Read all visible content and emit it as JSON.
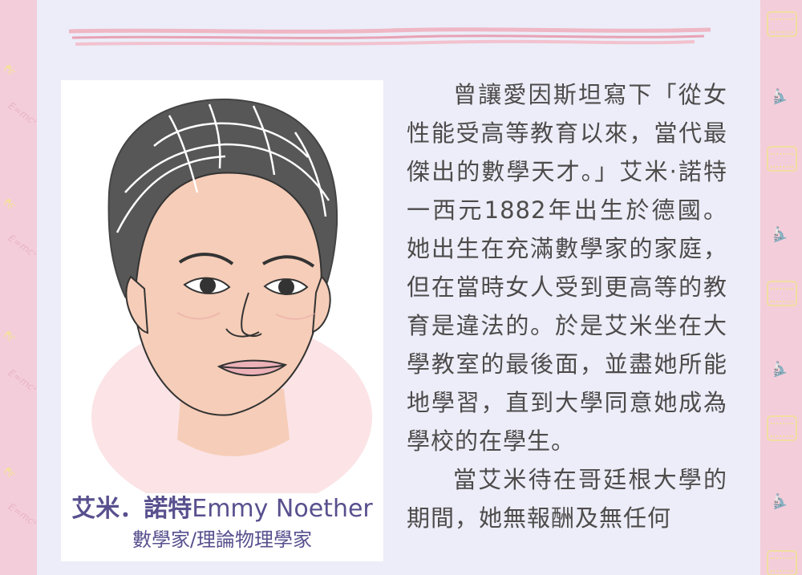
{
  "caption": {
    "name_chinese": "艾米．諾特",
    "name_english": "Emmy Noether",
    "role": "數學家/理論物理學家"
  },
  "story": {
    "paragraph1": "曾讓愛因斯坦寫下「從女性能受高等教育以來，當代最傑出的數學天才。」艾米·諾特一西元1882年出生於德國。她出生在充滿數學家的家庭，但在當時女人受到更高等的教育是違法的。於是艾米坐在大學教室的最後面，並盡她所能地學習，直到大學同意她成為學校的在學生。",
    "paragraph2": "當艾米待在哥廷根大學的期間，她無報酬及無任何"
  },
  "colors": {
    "border": "#f4cdda",
    "panel": "#ecedf8",
    "caption": "#58508e",
    "text": "#4e4b4b",
    "stripe": "#e6a7b6"
  },
  "decorations": [
    "calendar-icon",
    "microscope-icon",
    "flask-icon",
    "formula-text"
  ]
}
